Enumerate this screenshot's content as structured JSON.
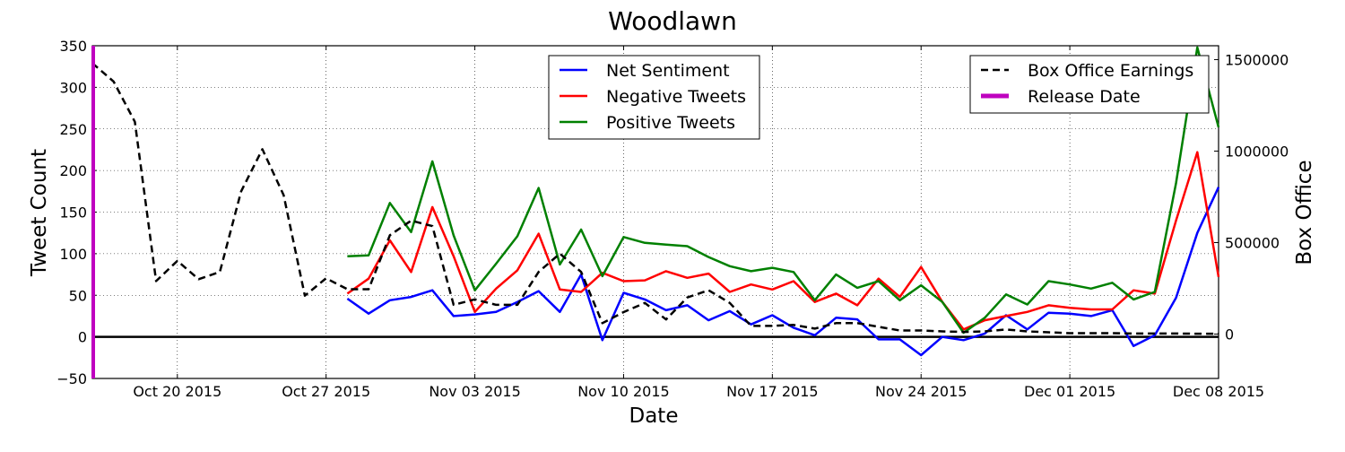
{
  "chart_data": {
    "type": "line",
    "title": "Woodlawn",
    "xlabel": "Date",
    "ylabel": "Tweet Count",
    "ylabel_right": "Box Office",
    "xlim": [
      "2015-10-16",
      "2015-12-08"
    ],
    "ylim": [
      -50,
      350
    ],
    "ylim_right": [
      -242424,
      1575758
    ],
    "grid": true,
    "xticks": [
      {
        "date": "2015-10-20",
        "label": "Oct 20 2015"
      },
      {
        "date": "2015-10-27",
        "label": "Oct 27 2015"
      },
      {
        "date": "2015-11-03",
        "label": "Nov 03 2015"
      },
      {
        "date": "2015-11-10",
        "label": "Nov 10 2015"
      },
      {
        "date": "2015-11-17",
        "label": "Nov 17 2015"
      },
      {
        "date": "2015-11-24",
        "label": "Nov 24 2015"
      },
      {
        "date": "2015-12-01",
        "label": "Dec 01 2015"
      },
      {
        "date": "2015-12-08",
        "label": "Dec 08 2015"
      }
    ],
    "yticks": [
      -50,
      0,
      50,
      100,
      150,
      200,
      250,
      300,
      350
    ],
    "yticks_right": [
      0,
      500000,
      1000000,
      1500000
    ],
    "legend_left": {
      "placement": "upper-center",
      "entries": [
        "Net Sentiment",
        "Negative Tweets",
        "Positive Tweets"
      ]
    },
    "legend_right": {
      "placement": "upper-right",
      "entries": [
        "Box Office Earnings",
        "Release Date"
      ]
    },
    "release_date": "2015-10-16",
    "series": [
      {
        "name": "Net Sentiment",
        "color": "#0000ff",
        "axis": "left",
        "x": [
          "2015-10-28",
          "2015-10-29",
          "2015-10-30",
          "2015-10-31",
          "2015-11-01",
          "2015-11-02",
          "2015-11-03",
          "2015-11-04",
          "2015-11-05",
          "2015-11-06",
          "2015-11-07",
          "2015-11-08",
          "2015-11-09",
          "2015-11-10",
          "2015-11-11",
          "2015-11-12",
          "2015-11-13",
          "2015-11-14",
          "2015-11-15",
          "2015-11-16",
          "2015-11-17",
          "2015-11-18",
          "2015-11-19",
          "2015-11-20",
          "2015-11-21",
          "2015-11-22",
          "2015-11-23",
          "2015-11-24",
          "2015-11-25",
          "2015-11-26",
          "2015-11-27",
          "2015-11-28",
          "2015-11-29",
          "2015-11-30",
          "2015-12-01",
          "2015-12-02",
          "2015-12-03",
          "2015-12-04",
          "2015-12-05",
          "2015-12-06",
          "2015-12-07",
          "2015-12-08"
        ],
        "y": [
          46,
          28,
          44,
          48,
          56,
          25,
          27,
          30,
          42,
          55,
          30,
          75,
          -4,
          53,
          45,
          32,
          38,
          20,
          31,
          15,
          26,
          11,
          2,
          23,
          21,
          -3,
          -3,
          -22,
          0,
          -4,
          4,
          26,
          9,
          29,
          28,
          25,
          32,
          -11,
          2,
          47,
          125,
          180
        ]
      },
      {
        "name": "Negative Tweets",
        "color": "#ff0000",
        "axis": "left",
        "x": [
          "2015-10-28",
          "2015-10-29",
          "2015-10-30",
          "2015-10-31",
          "2015-11-01",
          "2015-11-02",
          "2015-11-03",
          "2015-11-04",
          "2015-11-05",
          "2015-11-06",
          "2015-11-07",
          "2015-11-08",
          "2015-11-09",
          "2015-11-10",
          "2015-11-11",
          "2015-11-12",
          "2015-11-13",
          "2015-11-14",
          "2015-11-15",
          "2015-11-16",
          "2015-11-17",
          "2015-11-18",
          "2015-11-19",
          "2015-11-20",
          "2015-11-21",
          "2015-11-22",
          "2015-11-23",
          "2015-11-24",
          "2015-11-25",
          "2015-11-26",
          "2015-11-27",
          "2015-11-28",
          "2015-11-29",
          "2015-11-30",
          "2015-12-01",
          "2015-12-02",
          "2015-12-03",
          "2015-12-04",
          "2015-12-05",
          "2015-12-06",
          "2015-12-07",
          "2015-12-08"
        ],
        "y": [
          52,
          70,
          116,
          78,
          156,
          97,
          30,
          58,
          80,
          124,
          57,
          54,
          77,
          67,
          68,
          79,
          71,
          76,
          54,
          63,
          57,
          67,
          42,
          52,
          38,
          70,
          48,
          84,
          42,
          9,
          20,
          25,
          30,
          38,
          35,
          33,
          33,
          56,
          52,
          140,
          222,
          72
        ]
      },
      {
        "name": "Positive Tweets",
        "color": "#008000",
        "axis": "left",
        "x": [
          "2015-10-28",
          "2015-10-29",
          "2015-10-30",
          "2015-10-31",
          "2015-11-01",
          "2015-11-02",
          "2015-11-03",
          "2015-11-04",
          "2015-11-05",
          "2015-11-06",
          "2015-11-07",
          "2015-11-08",
          "2015-11-09",
          "2015-11-10",
          "2015-11-11",
          "2015-11-12",
          "2015-11-13",
          "2015-11-14",
          "2015-11-15",
          "2015-11-16",
          "2015-11-17",
          "2015-11-18",
          "2015-11-19",
          "2015-11-20",
          "2015-11-21",
          "2015-11-22",
          "2015-11-23",
          "2015-11-24",
          "2015-11-25",
          "2015-11-26",
          "2015-11-27",
          "2015-11-28",
          "2015-11-29",
          "2015-11-30",
          "2015-12-01",
          "2015-12-02",
          "2015-12-03",
          "2015-12-04",
          "2015-12-05",
          "2015-12-06",
          "2015-12-07",
          "2015-12-08"
        ],
        "y": [
          97,
          98,
          161,
          126,
          211,
          122,
          56,
          88,
          121,
          179,
          87,
          129,
          73,
          120,
          113,
          111,
          109,
          96,
          85,
          79,
          83,
          78,
          44,
          75,
          59,
          67,
          44,
          62,
          42,
          5,
          23,
          51,
          39,
          67,
          63,
          58,
          65,
          45,
          54,
          185,
          348,
          252
        ]
      },
      {
        "name": "Box Office Earnings",
        "color": "#000000",
        "axis": "right",
        "dashed": true,
        "x": [
          "2015-10-16",
          "2015-10-17",
          "2015-10-18",
          "2015-10-19",
          "2015-10-20",
          "2015-10-21",
          "2015-10-22",
          "2015-10-23",
          "2015-10-24",
          "2015-10-25",
          "2015-10-26",
          "2015-10-27",
          "2015-10-28",
          "2015-10-29",
          "2015-10-30",
          "2015-10-31",
          "2015-11-01",
          "2015-11-02",
          "2015-11-03",
          "2015-11-04",
          "2015-11-05",
          "2015-11-06",
          "2015-11-07",
          "2015-11-08",
          "2015-11-09",
          "2015-11-10",
          "2015-11-11",
          "2015-11-12",
          "2015-11-13",
          "2015-11-14",
          "2015-11-15",
          "2015-11-16",
          "2015-11-17",
          "2015-11-18",
          "2015-11-19",
          "2015-11-20",
          "2015-11-21",
          "2015-11-22",
          "2015-11-23",
          "2015-11-24",
          "2015-11-25",
          "2015-11-26",
          "2015-11-27",
          "2015-11-28",
          "2015-11-29",
          "2015-11-30",
          "2015-12-01",
          "2015-12-02",
          "2015-12-03",
          "2015-12-04",
          "2015-12-05",
          "2015-12-06",
          "2015-12-07",
          "2015-12-08"
        ],
        "y": [
          1480000,
          1380000,
          1160000,
          290000,
          400000,
          300000,
          340000,
          780000,
          1010000,
          760000,
          210000,
          305000,
          245000,
          245000,
          540000,
          620000,
          590000,
          160000,
          190000,
          160000,
          160000,
          340000,
          440000,
          340000,
          60000,
          120000,
          170000,
          80000,
          200000,
          240000,
          170000,
          45000,
          45000,
          50000,
          30000,
          60000,
          60000,
          40000,
          20000,
          20000,
          15000,
          12000,
          15000,
          25000,
          15000,
          10000,
          5000,
          5000,
          5000,
          3000,
          3000,
          3000,
          2000,
          2000
        ]
      }
    ]
  }
}
